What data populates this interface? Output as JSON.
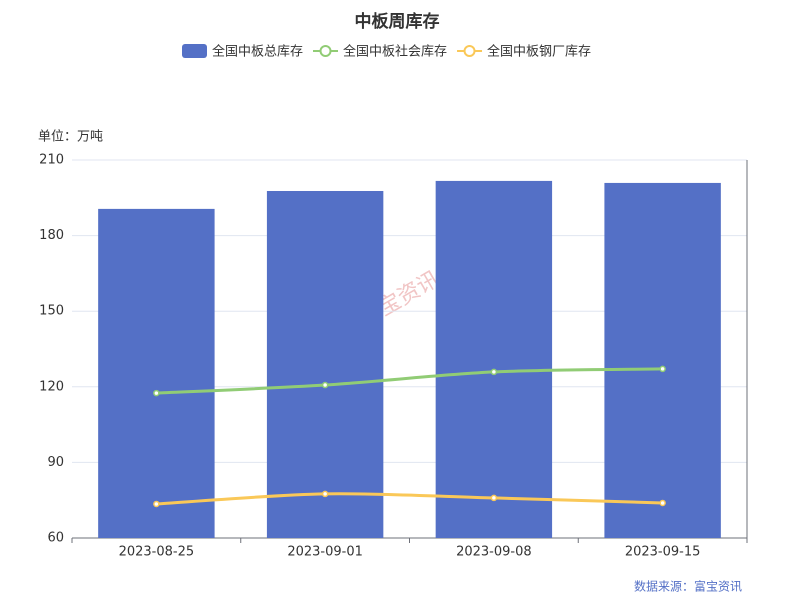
{
  "chart_data": {
    "type": "bar",
    "title": "中板周库存",
    "y_axis_label": "单位：万吨",
    "source": "数据来源：富宝资讯",
    "watermark": "富宝资讯",
    "categories": [
      "2023-08-25",
      "2023-09-01",
      "2023-09-08",
      "2023-09-15"
    ],
    "series": [
      {
        "name": "全国中板总库存",
        "type": "bar",
        "color": "#5470c6",
        "values": [
          190.6,
          197.7,
          201.7,
          200.9
        ]
      },
      {
        "name": "全国中板社会库存",
        "type": "line",
        "color": "#91cc75",
        "values": [
          117.5,
          120.7,
          125.9,
          127.1
        ]
      },
      {
        "name": "全国中板钢厂库存",
        "type": "line",
        "color": "#fac858",
        "values": [
          73.5,
          77.5,
          75.9,
          73.9
        ]
      }
    ],
    "ylim": [
      60,
      210
    ],
    "yticks": [
      60,
      90,
      120,
      150,
      180,
      210
    ],
    "grid": true
  }
}
